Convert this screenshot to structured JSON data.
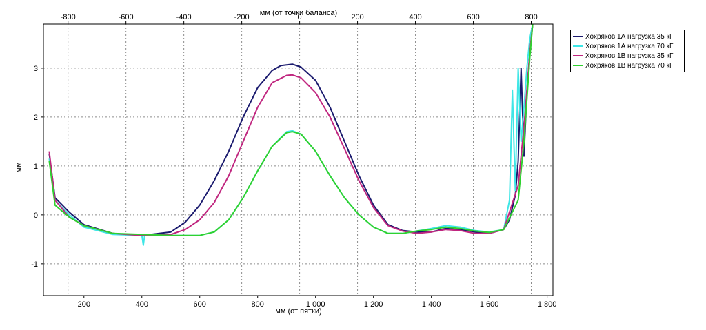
{
  "chart_data": {
    "type": "line",
    "top_axis_label": "мм (от точки баланса)",
    "xlabel": "мм (от пятки)",
    "ylabel": "мм",
    "xlim": [
      60,
      1820
    ],
    "ylim": [
      -1.65,
      3.9
    ],
    "top_axis_offset": 945,
    "x_ticks": [
      200,
      400,
      600,
      800,
      1000,
      1200,
      1400,
      1600,
      1800
    ],
    "x_tick_labels": [
      "200",
      "400",
      "600",
      "800",
      "1 000",
      "1 200",
      "1 400",
      "1 600",
      "1 800"
    ],
    "top_ticks": [
      -800,
      -600,
      -400,
      -200,
      0,
      200,
      400,
      600,
      800
    ],
    "top_tick_labels": [
      "-800",
      "-600",
      "-400",
      "-200",
      "0",
      "200",
      "400",
      "600",
      "800"
    ],
    "y_ticks": [
      -1,
      0,
      1,
      2,
      3
    ],
    "y_tick_labels": [
      "-1",
      "0",
      "1",
      "2",
      "3"
    ],
    "grid": true,
    "legend_position": "right",
    "series": [
      {
        "name": "Хохряков 1А нагрузка 35 кГ",
        "color": "#1a1a6e",
        "x": [
          80,
          100,
          150,
          200,
          300,
          400,
          500,
          550,
          600,
          650,
          700,
          750,
          800,
          850,
          880,
          920,
          950,
          1000,
          1050,
          1100,
          1150,
          1200,
          1250,
          1300,
          1350,
          1400,
          1450,
          1500,
          1550,
          1600,
          1650,
          1670,
          1690,
          1700,
          1710,
          1720,
          1730,
          1740,
          1750
        ],
        "y": [
          1.25,
          0.35,
          0.05,
          -0.2,
          -0.38,
          -0.42,
          -0.35,
          -0.15,
          0.2,
          0.7,
          1.3,
          2.0,
          2.6,
          2.95,
          3.05,
          3.08,
          3.02,
          2.75,
          2.2,
          1.5,
          0.8,
          0.2,
          -0.2,
          -0.32,
          -0.35,
          -0.35,
          -0.28,
          -0.3,
          -0.35,
          -0.38,
          -0.3,
          -0.1,
          0.4,
          1.1,
          3.0,
          1.2,
          2.5,
          3.3,
          3.9
        ]
      },
      {
        "name": "Хохряков 1А нагрузка 70 кГ",
        "color": "#3ee6e6",
        "x": [
          80,
          100,
          150,
          200,
          300,
          400,
          405,
          410,
          500,
          550,
          600,
          650,
          700,
          750,
          800,
          850,
          900,
          920,
          950,
          1000,
          1050,
          1100,
          1150,
          1200,
          1250,
          1300,
          1350,
          1400,
          1450,
          1500,
          1550,
          1600,
          1650,
          1670,
          1680,
          1690,
          1700,
          1710,
          1720,
          1730,
          1740,
          1750
        ],
        "y": [
          1.15,
          0.3,
          0.0,
          -0.25,
          -0.4,
          -0.42,
          -0.62,
          -0.4,
          -0.42,
          -0.42,
          -0.42,
          -0.35,
          -0.1,
          0.35,
          0.9,
          1.4,
          1.7,
          1.72,
          1.65,
          1.3,
          0.8,
          0.35,
          0.0,
          -0.25,
          -0.38,
          -0.38,
          -0.33,
          -0.28,
          -0.22,
          -0.25,
          -0.32,
          -0.35,
          -0.3,
          0.3,
          2.55,
          0.5,
          3.0,
          1.5,
          2.2,
          3.0,
          3.6,
          3.9
        ]
      },
      {
        "name": "Хохряков 1В нагрузка 35 кГ",
        "color": "#c0267f",
        "x": [
          80,
          100,
          150,
          200,
          300,
          400,
          500,
          550,
          600,
          650,
          700,
          750,
          800,
          850,
          900,
          920,
          950,
          1000,
          1050,
          1100,
          1150,
          1200,
          1250,
          1300,
          1350,
          1400,
          1450,
          1500,
          1550,
          1600,
          1650,
          1700,
          1720,
          1740,
          1750
        ],
        "y": [
          1.3,
          0.3,
          -0.05,
          -0.22,
          -0.38,
          -0.42,
          -0.4,
          -0.3,
          -0.1,
          0.25,
          0.8,
          1.5,
          2.2,
          2.7,
          2.85,
          2.86,
          2.8,
          2.5,
          2.0,
          1.35,
          0.7,
          0.15,
          -0.22,
          -0.33,
          -0.38,
          -0.35,
          -0.3,
          -0.32,
          -0.38,
          -0.38,
          -0.3,
          0.6,
          1.8,
          3.3,
          3.9
        ]
      },
      {
        "name": "Хохряков 1В нагрузка 70 кГ",
        "color": "#2fd12f",
        "x": [
          80,
          100,
          150,
          200,
          300,
          400,
          500,
          550,
          600,
          650,
          700,
          750,
          800,
          850,
          900,
          920,
          950,
          1000,
          1050,
          1100,
          1150,
          1200,
          1250,
          1300,
          1350,
          1400,
          1450,
          1500,
          1550,
          1600,
          1650,
          1700,
          1720,
          1740,
          1750
        ],
        "y": [
          1.1,
          0.2,
          -0.05,
          -0.22,
          -0.38,
          -0.4,
          -0.42,
          -0.42,
          -0.42,
          -0.35,
          -0.1,
          0.35,
          0.9,
          1.4,
          1.68,
          1.7,
          1.65,
          1.3,
          0.8,
          0.35,
          0.0,
          -0.25,
          -0.38,
          -0.38,
          -0.33,
          -0.3,
          -0.25,
          -0.28,
          -0.33,
          -0.36,
          -0.3,
          0.3,
          1.5,
          3.2,
          3.9
        ]
      }
    ]
  }
}
